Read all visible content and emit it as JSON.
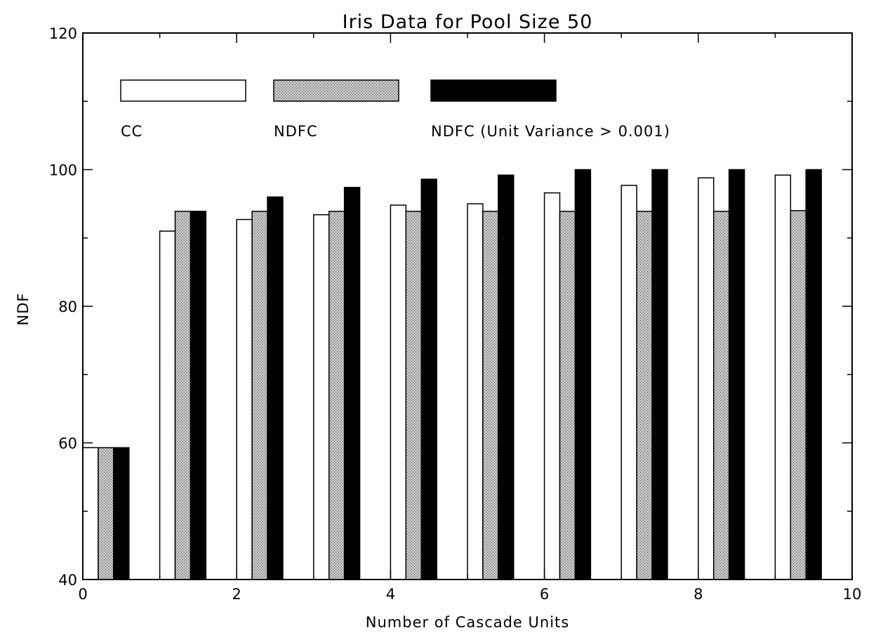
{
  "chart_data": {
    "type": "bar",
    "title": "Iris Data for Pool Size 50",
    "xlabel": "Number of Cascade Units",
    "ylabel": "NDF",
    "xlim": [
      0,
      10
    ],
    "ylim": [
      40,
      120
    ],
    "x_ticks": [
      "0",
      "2",
      "4",
      "6",
      "8",
      "10"
    ],
    "y_ticks": [
      "40",
      "60",
      "80",
      "100",
      "120"
    ],
    "x": [
      0,
      1,
      2,
      3,
      4,
      5,
      6,
      7,
      8,
      9
    ],
    "grid": false,
    "legend_position": "top",
    "series": [
      {
        "name": "CC",
        "fill": "#ffffff",
        "values": [
          59.3,
          91.0,
          92.7,
          93.4,
          94.8,
          95.0,
          96.6,
          97.7,
          98.8,
          99.2
        ]
      },
      {
        "name": "NDFC",
        "fill": "#a9a9a9",
        "values": [
          59.3,
          93.9,
          93.9,
          93.9,
          93.9,
          93.9,
          93.9,
          93.9,
          93.9,
          94.0
        ]
      },
      {
        "name": "NDFC (Unit Variance > 0.001)",
        "fill": "#000000",
        "values": [
          59.3,
          93.9,
          96.0,
          97.4,
          98.6,
          99.2,
          100.0,
          100.0,
          100.0,
          100.0
        ]
      }
    ]
  }
}
